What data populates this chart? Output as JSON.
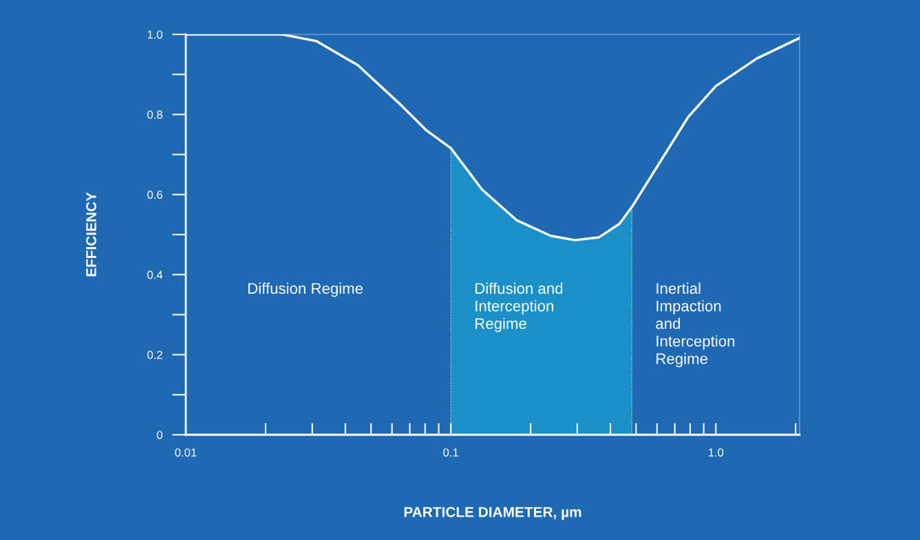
{
  "chart_data": {
    "type": "line",
    "xlabel": "PARTICLE DIAMETER, µm",
    "ylabel": "EFFICIENCY",
    "log": "x",
    "x": [
      0.01,
      0.0231,
      0.0312,
      0.0446,
      0.0638,
      0.081,
      0.1,
      0.131,
      0.177,
      0.238,
      0.294,
      0.362,
      0.433,
      0.488,
      0.583,
      0.787,
      1.0,
      1.43,
      2.07
    ],
    "series": [
      {
        "color": "#ffffff",
        "values": [
          1.0,
          1.0,
          0.983,
          0.923,
          0.828,
          0.76,
          0.716,
          0.613,
          0.536,
          0.497,
          0.486,
          0.493,
          0.527,
          0.574,
          0.656,
          0.794,
          0.871,
          0.94,
          0.991
        ]
      },
      {
        "type": "area",
        "color": "#1a8fc8",
        "x": [
          0.1,
          0.131,
          0.177,
          0.238,
          0.294,
          0.362,
          0.433,
          0.482
        ],
        "values": [
          0.716,
          0.613,
          0.536,
          0.497,
          0.486,
          0.493,
          0.527,
          0.568
        ]
      }
    ],
    "xlim": [
      0.01,
      2.07
    ],
    "xticks": [
      0.01,
      0.1,
      {
        "value": 1,
        "label": "1.0"
      }
    ],
    "ylim": [
      0,
      1
    ],
    "yticks": [
      0,
      0.2,
      0.4,
      0.6,
      0.8,
      {
        "value": 1,
        "label": "1.0"
      }
    ],
    "annotations": [
      "Diffusion Regime",
      "Diffusion and\nInterception\nRegime",
      "Inertial\nImpaction\nand\nInterception\nRegime"
    ],
    "grid": false,
    "legend": false,
    "marker": "none",
    "line_style": "solid"
  }
}
